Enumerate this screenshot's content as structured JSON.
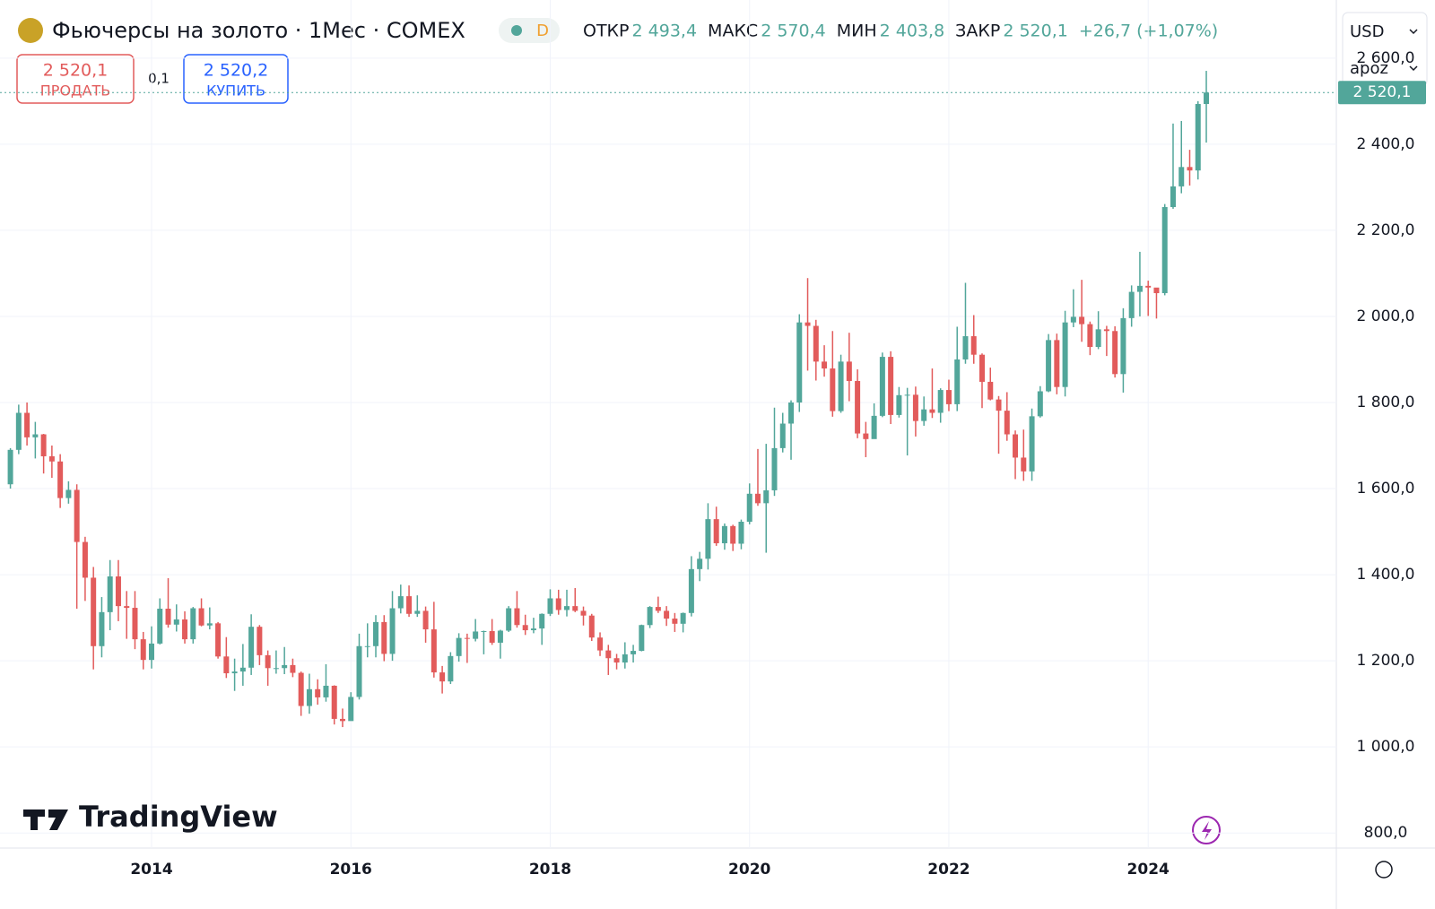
{
  "chart_data": {
    "type": "candlestick",
    "header": {
      "title": "Фьючерсы на золото · 1Мес · COMEX",
      "badge": "D",
      "ohlc": [
        {
          "label": "ОТКР",
          "value": "2 493,4"
        },
        {
          "label": "МАКС",
          "value": "2 570,4"
        },
        {
          "label": "МИН",
          "value": "2 403,8"
        },
        {
          "label": "ЗАКР",
          "value": "2 520,1"
        }
      ],
      "change": "+26,7 (+1,07%)",
      "sell_price": "2 520,1",
      "sell_label": "ПРОДАТЬ",
      "spread": "0,1",
      "buy_price": "2 520,2",
      "buy_label": "КУПИТЬ",
      "currency": "USD",
      "scale_mode": "apoz"
    },
    "logo": "TradingView",
    "up_color": "#52a69a",
    "down_color": "#e25b5b",
    "categories": [
      null,
      null,
      null,
      null,
      null,
      null,
      null,
      null,
      null,
      null,
      null,
      null,
      null,
      null,
      null,
      null,
      null,
      "2014",
      null,
      null,
      null,
      null,
      null,
      null,
      null,
      null,
      null,
      null,
      null,
      null,
      null,
      null,
      null,
      null,
      null,
      null,
      null,
      null,
      null,
      null,
      null,
      "2016",
      null,
      null,
      null,
      null,
      null,
      null,
      null,
      null,
      null,
      null,
      null,
      null,
      null,
      null,
      null,
      null,
      null,
      null,
      null,
      null,
      null,
      null,
      null,
      "2018",
      null,
      null,
      null,
      null,
      null,
      null,
      null,
      null,
      null,
      null,
      null,
      null,
      null,
      null,
      null,
      null,
      null,
      null,
      null,
      null,
      null,
      null,
      null,
      "2020",
      null,
      null,
      null,
      null,
      null,
      null,
      null,
      null,
      null,
      null,
      null,
      null,
      null,
      null,
      null,
      null,
      null,
      null,
      null,
      null,
      null,
      null,
      null,
      "2022",
      null,
      null,
      null,
      null,
      null,
      null,
      null,
      null,
      null,
      null,
      null,
      null,
      null,
      null,
      null,
      null,
      null,
      null,
      null,
      null,
      null,
      null,
      null,
      "2024",
      null,
      null,
      null,
      null,
      null,
      null,
      null
    ],
    "open": [
      1610,
      1690,
      1776,
      1719,
      1726,
      1675,
      1663,
      1578,
      1597,
      1476,
      1393,
      1234,
      1313,
      1396,
      1327,
      1323,
      1250,
      1202,
      1240,
      1321,
      1284,
      1296,
      1250,
      1322,
      1282,
      1287,
      1210,
      1171,
      1175,
      1184,
      1279,
      1213,
      1183,
      1183,
      1190,
      1172,
      1095,
      1134,
      1115,
      1142,
      1065,
      1060,
      1116,
      1234,
      1234,
      1290,
      1216,
      1322,
      1350,
      1309,
      1316,
      1273,
      1173,
      1152,
      1211,
      1253,
      1251,
      1268,
      1269,
      1242,
      1270,
      1322,
      1283,
      1271,
      1275,
      1309,
      1345,
      1318,
      1327,
      1316,
      1305,
      1254,
      1224,
      1206,
      1196,
      1215,
      1223,
      1283,
      1325,
      1316,
      1298,
      1286,
      1311,
      1413,
      1437,
      1529,
      1473,
      1513,
      1472,
      1523,
      1588,
      1566,
      1596,
      1694,
      1751,
      1800,
      1986,
      1978,
      1895,
      1879,
      1780,
      1895,
      1850,
      1728,
      1715,
      1769,
      1906,
      1771,
      1817,
      1818,
      1757,
      1784,
      1776,
      1829,
      1796,
      1900,
      1954,
      1911,
      1848,
      1807,
      1781,
      1726,
      1672,
      1640,
      1768,
      1826,
      1945,
      1836,
      1986,
      1999,
      1982,
      1929,
      1970,
      1966,
      1866,
      1996,
      2057,
      2071,
      2067,
      2054,
      2254,
      2302,
      2347,
      2339,
      2493.4
    ],
    "high": [
      1694,
      1795,
      1800,
      1755,
      1727,
      1700,
      1680,
      1617,
      1610,
      1488,
      1418,
      1348,
      1434,
      1434,
      1362,
      1362,
      1267,
      1280,
      1345,
      1392,
      1331,
      1315,
      1325,
      1345,
      1324,
      1290,
      1255,
      1205,
      1239,
      1308,
      1283,
      1224,
      1224,
      1232,
      1205,
      1175,
      1170,
      1157,
      1192,
      1143,
      1089,
      1127,
      1263,
      1287,
      1306,
      1306,
      1362,
      1377,
      1375,
      1352,
      1326,
      1337,
      1188,
      1220,
      1264,
      1263,
      1297,
      1270,
      1297,
      1272,
      1327,
      1362,
      1307,
      1300,
      1310,
      1366,
      1365,
      1365,
      1369,
      1326,
      1309,
      1266,
      1237,
      1216,
      1243,
      1237,
      1284,
      1327,
      1349,
      1327,
      1311,
      1312,
      1443,
      1453,
      1566,
      1558,
      1519,
      1516,
      1528,
      1612,
      1692,
      1704,
      1788,
      1776,
      1805,
      2005,
      2089,
      1992,
      1933,
      1966,
      1911,
      1962,
      1877,
      1755,
      1798,
      1916,
      1919,
      1836,
      1834,
      1837,
      1814,
      1879,
      1833,
      1853,
      1976,
      2078,
      2003,
      1914,
      1881,
      1815,
      1824,
      1735,
      1737,
      1786,
      1838,
      1959,
      1960,
      2013,
      2063,
      2085,
      1988,
      2012,
      1978,
      1977,
      2019,
      2072,
      2150,
      2083,
      2066,
      2261,
      2448,
      2454,
      2387,
      2500,
      2570.4
    ],
    "low": [
      1600,
      1680,
      1700,
      1670,
      1635,
      1625,
      1555,
      1565,
      1321,
      1339,
      1180,
      1208,
      1271,
      1292,
      1251,
      1227,
      1180,
      1182,
      1238,
      1277,
      1268,
      1240,
      1240,
      1280,
      1273,
      1205,
      1160,
      1130,
      1142,
      1167,
      1190,
      1142,
      1170,
      1169,
      1162,
      1072,
      1077,
      1098,
      1105,
      1052,
      1046,
      1061,
      1110,
      1208,
      1208,
      1199,
      1200,
      1310,
      1302,
      1302,
      1242,
      1161,
      1124,
      1146,
      1198,
      1195,
      1245,
      1215,
      1237,
      1205,
      1267,
      1277,
      1260,
      1264,
      1237,
      1304,
      1307,
      1303,
      1313,
      1282,
      1246,
      1211,
      1167,
      1180,
      1182,
      1196,
      1222,
      1276,
      1311,
      1281,
      1267,
      1266,
      1303,
      1385,
      1412,
      1467,
      1458,
      1455,
      1459,
      1517,
      1560,
      1451,
      1583,
      1684,
      1667,
      1778,
      1874,
      1851,
      1860,
      1767,
      1776,
      1803,
      1717,
      1673,
      1721,
      1766,
      1750,
      1765,
      1677,
      1721,
      1746,
      1764,
      1753,
      1780,
      1780,
      1890,
      1890,
      1787,
      1805,
      1681,
      1711,
      1622,
      1618,
      1618,
      1765,
      1824,
      1819,
      1814,
      1975,
      1941,
      1910,
      1924,
      1908,
      1858,
      1823,
      1976,
      2000,
      2001,
      1995,
      2049,
      2250,
      2286,
      2304,
      2318,
      2403.8
    ],
    "close": [
      1690,
      1776,
      1719,
      1726,
      1675,
      1663,
      1578,
      1597,
      1476,
      1393,
      1234,
      1313,
      1396,
      1327,
      1323,
      1250,
      1202,
      1240,
      1321,
      1284,
      1296,
      1250,
      1322,
      1282,
      1287,
      1210,
      1171,
      1175,
      1184,
      1279,
      1213,
      1183,
      1183,
      1190,
      1172,
      1095,
      1134,
      1115,
      1142,
      1065,
      1060,
      1116,
      1234,
      1234,
      1290,
      1216,
      1322,
      1350,
      1309,
      1316,
      1273,
      1173,
      1152,
      1211,
      1253,
      1251,
      1268,
      1269,
      1242,
      1270,
      1322,
      1283,
      1271,
      1275,
      1309,
      1345,
      1318,
      1327,
      1316,
      1305,
      1254,
      1224,
      1206,
      1196,
      1215,
      1223,
      1283,
      1325,
      1316,
      1298,
      1286,
      1311,
      1413,
      1437,
      1529,
      1473,
      1513,
      1472,
      1523,
      1588,
      1566,
      1596,
      1694,
      1751,
      1800,
      1986,
      1978,
      1895,
      1879,
      1780,
      1895,
      1850,
      1728,
      1715,
      1769,
      1906,
      1771,
      1817,
      1818,
      1757,
      1784,
      1776,
      1829,
      1796,
      1900,
      1954,
      1911,
      1848,
      1807,
      1781,
      1726,
      1672,
      1640,
      1768,
      1826,
      1945,
      1836,
      1986,
      1999,
      1982,
      1929,
      1970,
      1966,
      1866,
      1996,
      2057,
      2071,
      2067,
      2054,
      2254,
      2302,
      2347,
      2339,
      2493.4,
      2520.1
    ],
    "last_price_label": "2 520,1",
    "ylim": [
      765,
      2735
    ],
    "yticks": [
      {
        "value": 800,
        "label": "800,0"
      },
      {
        "value": 1000,
        "label": "1 000,0"
      },
      {
        "value": 1200,
        "label": "1 200,0"
      },
      {
        "value": 1400,
        "label": "1 400,0"
      },
      {
        "value": 1600,
        "label": "1 600,0"
      },
      {
        "value": 1800,
        "label": "1 800,0"
      },
      {
        "value": 2000,
        "label": "2 000,0"
      },
      {
        "value": 2200,
        "label": "2 200,0"
      },
      {
        "value": 2400,
        "label": "2 400,0"
      },
      {
        "value": 2600,
        "label": "2 600,0"
      }
    ],
    "grid": true
  }
}
